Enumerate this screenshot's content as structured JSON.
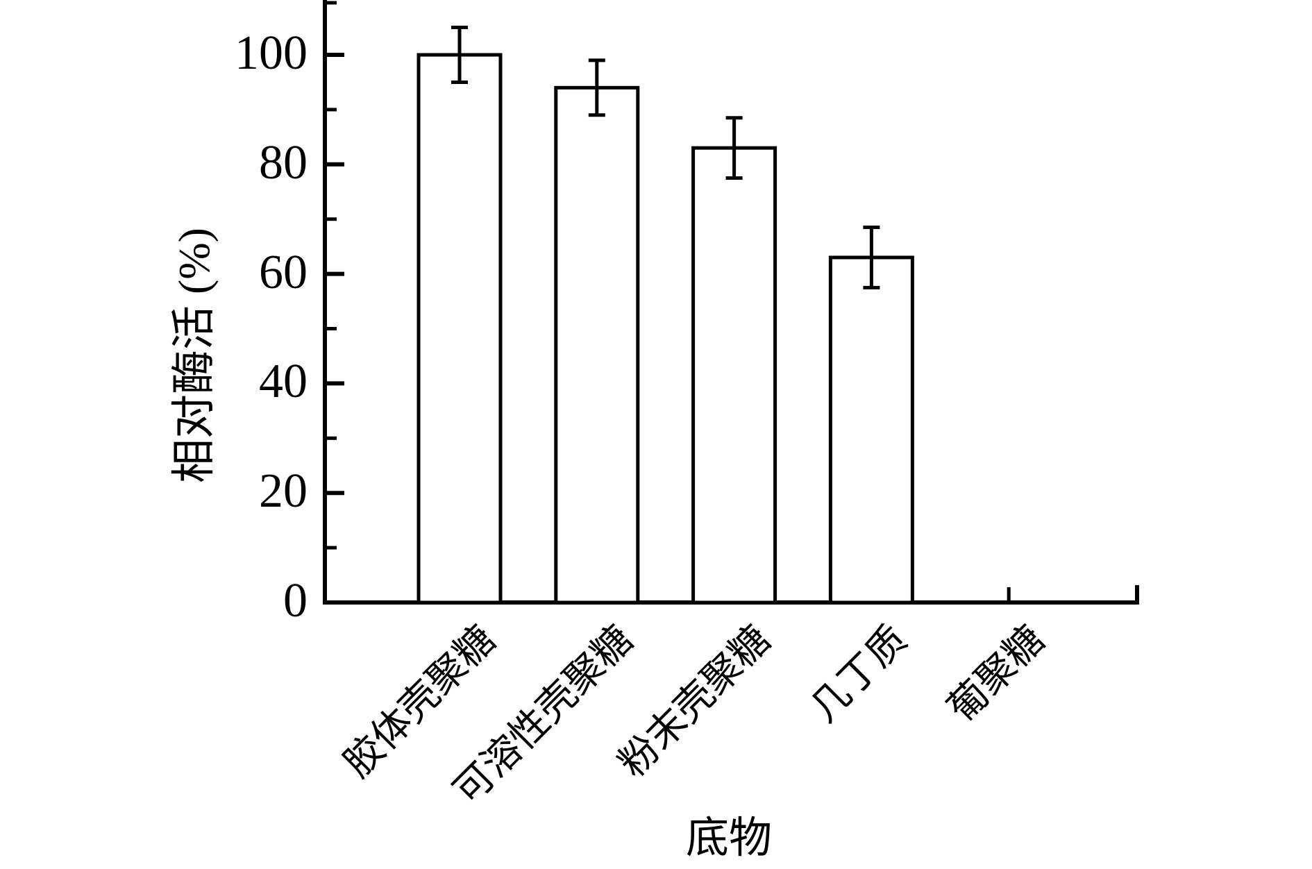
{
  "figure": {
    "background": "#ffffff",
    "stroke_color": "#000000",
    "bar_fill": "#ffffff"
  },
  "chart_data": {
    "type": "bar",
    "title": "",
    "xlabel": "底物",
    "ylabel": "相对酶活 (%)",
    "categories": [
      "胶体壳聚糖",
      "可溶性壳聚糖",
      "粉末壳聚糖",
      "几丁质",
      "葡聚糖"
    ],
    "series": [
      {
        "name": "相对酶活",
        "values": [
          100,
          94,
          83,
          63,
          0
        ],
        "errors": [
          5,
          5,
          5.5,
          5.5,
          0
        ]
      }
    ],
    "ylim": [
      0,
      110
    ],
    "ytick_values": [
      0,
      20,
      40,
      60,
      80,
      100
    ],
    "ytick_labels": [
      "0",
      "20",
      "40",
      "60",
      "80",
      "100"
    ],
    "ytick_minor_values": [
      10,
      30,
      50,
      70,
      90,
      110
    ],
    "grid": false,
    "legend": false,
    "error_bars": true,
    "bar_outline_only": true
  }
}
